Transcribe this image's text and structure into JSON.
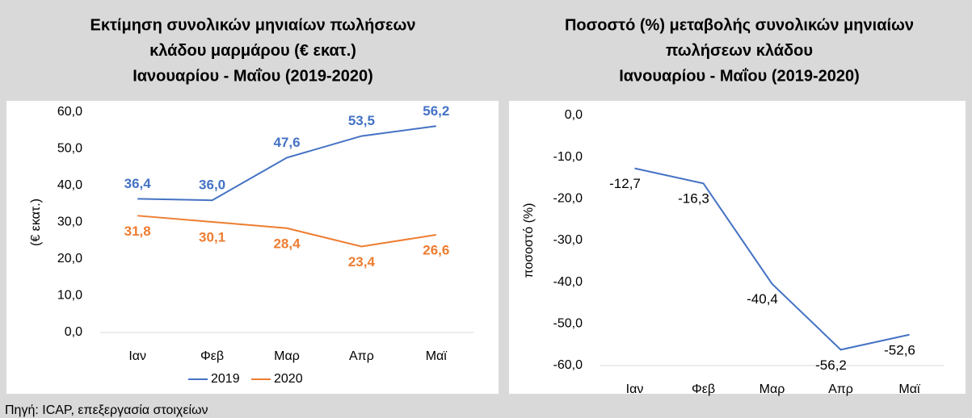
{
  "chart_data": [
    {
      "type": "line",
      "title": [
        "Εκτίμηση συνολικών μηνιαίων πωλήσεων",
        "κλάδου μαρμάρου (€ εκατ.)",
        "Ιανουαρίου - Μαΐου (2019-2020)"
      ],
      "ylabel": "(€ εκατ.)",
      "categories": [
        "Ιαν",
        "Φεβ",
        "Μαρ",
        "Απρ",
        "Μαϊ"
      ],
      "series": [
        {
          "name": "2019",
          "color": "#4472c4",
          "values": [
            36.4,
            36.0,
            47.6,
            53.5,
            56.2
          ],
          "value_labels": [
            "36,4",
            "36,0",
            "47,6",
            "53,5",
            "56,2"
          ],
          "label_position": "above"
        },
        {
          "name": "2020",
          "color": "#ed7d31",
          "values": [
            31.8,
            30.1,
            28.4,
            23.4,
            26.6
          ],
          "value_labels": [
            "31,8",
            "30,1",
            "28,4",
            "23,4",
            "26,6"
          ],
          "label_position": "below"
        }
      ],
      "ylim": [
        0,
        60
      ],
      "yticks": [
        {
          "value": 0,
          "label": "0,0"
        },
        {
          "value": 10,
          "label": "10,0"
        },
        {
          "value": 20,
          "label": "20,0"
        },
        {
          "value": 30,
          "label": "30,0"
        },
        {
          "value": 40,
          "label": "40,0"
        },
        {
          "value": 50,
          "label": "50,0"
        },
        {
          "value": 60,
          "label": "60,0"
        }
      ],
      "legend": "bottom"
    },
    {
      "type": "line",
      "title": [
        "Ποσοστό (%) μεταβολής συνολικών μηνιαίων",
        "πωλήσεων κλάδου",
        "Ιανουαρίου - Μαΐου (2019-2020)"
      ],
      "ylabel": "ποσοστό (%)",
      "categories": [
        "Ιαν",
        "Φεβ",
        "Μαρ",
        "Απρ",
        "Μαϊ"
      ],
      "series": [
        {
          "color": "#4472c4",
          "values": [
            -12.7,
            -16.3,
            -40.4,
            -56.2,
            -52.6
          ],
          "value_labels": [
            "-12,7",
            "-16,3",
            "-40,4",
            "-56,2",
            "-52,6"
          ],
          "label_position": "below"
        }
      ],
      "ylim": [
        -60,
        0
      ],
      "yticks": [
        {
          "value": -60,
          "label": "-60,0"
        },
        {
          "value": -50,
          "label": "-50,0"
        },
        {
          "value": -40,
          "label": "-40,0"
        },
        {
          "value": -30,
          "label": "-30,0"
        },
        {
          "value": -20,
          "label": "-20,0"
        },
        {
          "value": -10,
          "label": "-10,0"
        },
        {
          "value": 0,
          "label": "0,0"
        }
      ]
    }
  ],
  "source": "Πηγή: ICAP, επεξεργασία στοιχείων"
}
